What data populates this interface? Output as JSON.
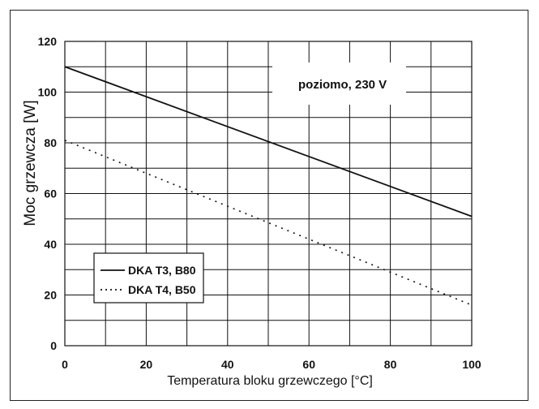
{
  "chart_data": {
    "type": "line",
    "title": "",
    "xlabel": "Temperatura bloku grzewczego [°C]",
    "ylabel": "Moc grzewcza [W]",
    "xlim": [
      0,
      100
    ],
    "ylim": [
      0,
      120
    ],
    "xticks": [
      0,
      20,
      40,
      60,
      80,
      100
    ],
    "yticks": [
      0,
      20,
      40,
      60,
      80,
      100,
      120
    ],
    "xtick_labels": [
      "0",
      "20",
      "40",
      "60",
      "80",
      "100"
    ],
    "ytick_labels": [
      "0",
      "20",
      "40",
      "60",
      "80",
      "100",
      "120"
    ],
    "grid": true,
    "legend_position": "bottom-left",
    "annotation": "poziomo, 230 V",
    "series": [
      {
        "name": "DKA T3, B80",
        "style": "solid",
        "color": "#111111",
        "x": [
          0,
          100
        ],
        "y": [
          110,
          51
        ]
      },
      {
        "name": "DKA T4, B50",
        "style": "dotted",
        "color": "#111111",
        "x": [
          0,
          100
        ],
        "y": [
          81,
          16
        ]
      }
    ]
  }
}
